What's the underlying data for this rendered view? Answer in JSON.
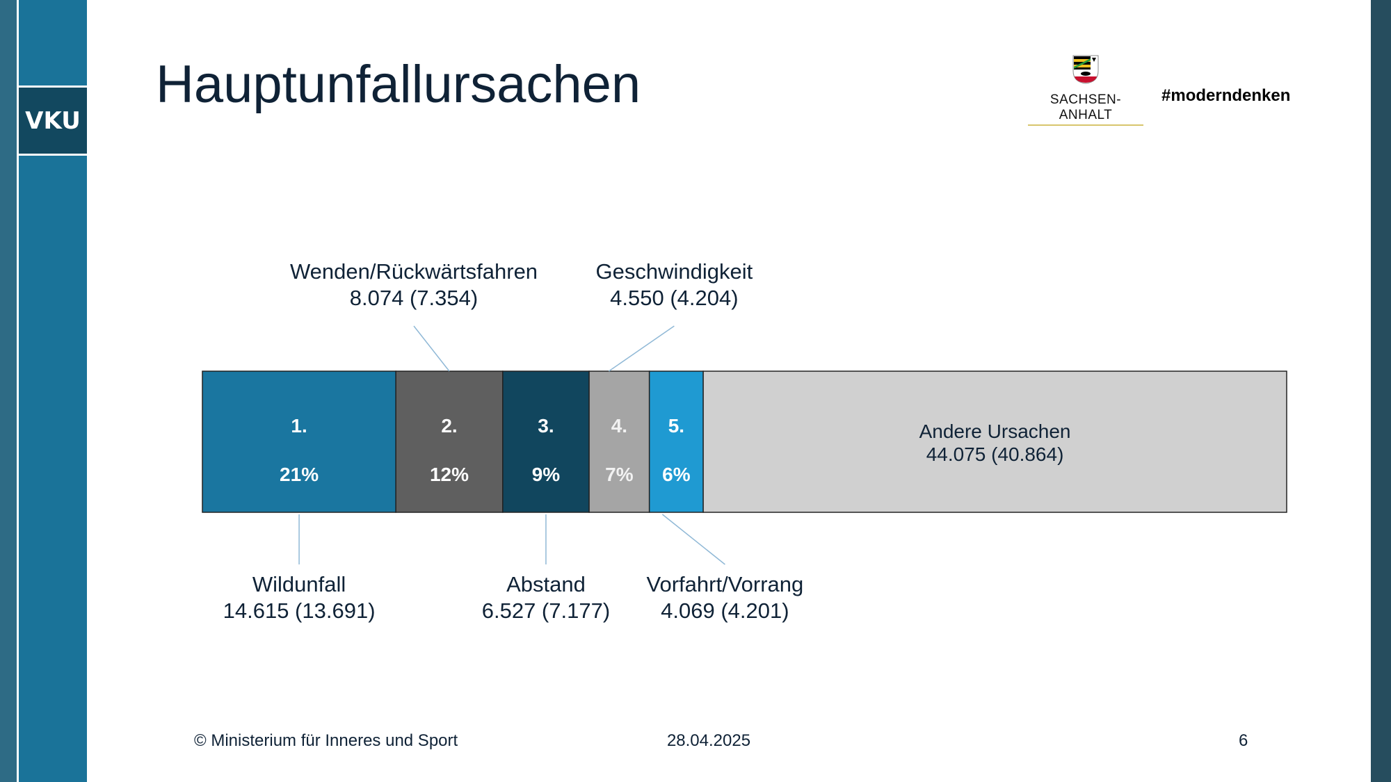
{
  "sidebar": {
    "badge": "VKU"
  },
  "header": {
    "title": "Hauptunfallursachen",
    "logo_text": "SACHSEN-ANHALT",
    "hashtag": "#moderndenken"
  },
  "chart_data": {
    "type": "bar",
    "orientation": "horizontal-stacked-100",
    "title": "",
    "segments": [
      {
        "rank": "1.",
        "name": "Wildunfall",
        "value": 14615,
        "previous": 13691,
        "value_label": "14.615 (13.691)",
        "percent_label": "21%",
        "color": "#1a76a0",
        "text_color": "#ffffff",
        "label_side": "bottom"
      },
      {
        "rank": "2.",
        "name": "Wenden/Rückwärtsfahren",
        "value": 8074,
        "previous": 7354,
        "value_label": "8.074 (7.354)",
        "percent_label": "12%",
        "color": "#5f5f5f",
        "text_color": "#ffffff",
        "label_side": "top"
      },
      {
        "rank": "3.",
        "name": "Abstand",
        "value": 6527,
        "previous": 7177,
        "value_label": "6.527 (7.177)",
        "percent_label": "9%",
        "color": "#11465e",
        "text_color": "#ffffff",
        "label_side": "bottom"
      },
      {
        "rank": "4.",
        "name": "Geschwindigkeit",
        "value": 4550,
        "previous": 4204,
        "value_label": "4.550 (4.204)",
        "percent_label": "7%",
        "color": "#a5a5a5",
        "text_color": "#f2f2f2",
        "label_side": "top"
      },
      {
        "rank": "5.",
        "name": "Vorfahrt/Vorrang",
        "value": 4069,
        "previous": 4201,
        "value_label": "4.069 (4.201)",
        "percent_label": "6%",
        "color": "#1f9ad2",
        "text_color": "#ffffff",
        "label_side": "bottom"
      },
      {
        "rank": "",
        "name": "Andere Ursachen",
        "value": 44075,
        "previous": 40864,
        "value_label": "44.075 (40.864)",
        "percent_label": "",
        "color": "#d0d0d0",
        "text_color": "#0f2236",
        "label_side": "inside"
      }
    ]
  },
  "footer": {
    "copyright": "© Ministerium für Inneres und Sport",
    "date": "28.04.2025",
    "page": "6"
  }
}
